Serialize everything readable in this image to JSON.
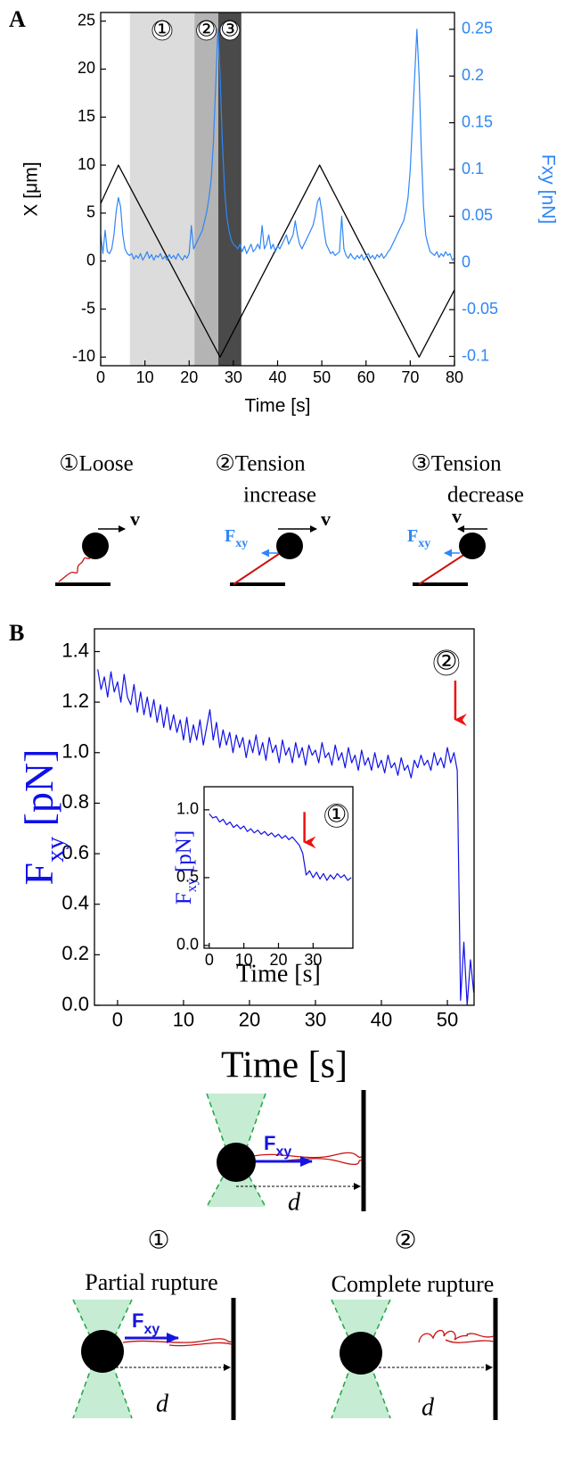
{
  "panel_labels": [
    "A",
    "B"
  ],
  "chart_data": [
    {
      "type": "line",
      "xlabel": "Time [s]",
      "ylabel": "X [μm]",
      "y2label": "Fxy [nN]",
      "xlim": [
        0,
        80
      ],
      "xticks": [
        0,
        10,
        20,
        30,
        40,
        50,
        60,
        70,
        80
      ],
      "ylim": [
        -10.9,
        25.9
      ],
      "yticks": [
        -10,
        -5,
        0,
        5,
        10,
        15,
        20,
        25
      ],
      "y2lim": [
        -0.11,
        0.268
      ],
      "y2ticks": [
        -0.1,
        -0.05,
        0,
        0.05,
        0.1,
        0.15,
        0.2,
        0.25
      ],
      "regions": [
        {
          "x0": 6.6,
          "x1": 21.2,
          "label": "①",
          "color": "#dcdcdc"
        },
        {
          "x0": 21.2,
          "x1": 26.6,
          "label": "②",
          "color": "#b4b4b4"
        },
        {
          "x0": 26.6,
          "x1": 31.8,
          "label": "③",
          "color": "#4a4a4a"
        }
      ],
      "series": [
        {
          "color": "#000000",
          "x": [
            0,
            4,
            27,
            49.5,
            72,
            80
          ],
          "values": [
            6,
            10,
            -10,
            10,
            -10,
            -3
          ]
        },
        {
          "color": "#2f86f6",
          "axis": "y2",
          "x": [
            0,
            0.5,
            1,
            1.5,
            2,
            2.5,
            3,
            3.5,
            4,
            4.5,
            5,
            5.5,
            6,
            6.5,
            7,
            7.5,
            8,
            8.5,
            9,
            9.5,
            10,
            10.5,
            11,
            11.5,
            12,
            12.5,
            13,
            13.5,
            14,
            14.5,
            15,
            15.5,
            16,
            16.5,
            17,
            17.5,
            18,
            18.5,
            19,
            19.5,
            20,
            20.5,
            21,
            21.5,
            22,
            22.5,
            23,
            23.5,
            24,
            24.5,
            25,
            25.5,
            26,
            26.5,
            27,
            27.5,
            28,
            28.5,
            29,
            29.5,
            30,
            30.5,
            31,
            31.5,
            32,
            32.5,
            33,
            33.5,
            34,
            34.5,
            35,
            35.5,
            36,
            36.5,
            37,
            37.5,
            38,
            38.5,
            39,
            39.5,
            40,
            40.5,
            41,
            41.5,
            42,
            42.5,
            43,
            43.5,
            44,
            44.5,
            45,
            45.5,
            46,
            46.5,
            47,
            47.5,
            48,
            48.5,
            49,
            49.5,
            50,
            50.5,
            51,
            51.5,
            52,
            52.5,
            53,
            53.5,
            54,
            54.5,
            55,
            55.5,
            56,
            56.5,
            57,
            57.5,
            58,
            58.5,
            59,
            59.5,
            60,
            60.5,
            61,
            61.5,
            62,
            62.5,
            63,
            63.5,
            64,
            64.5,
            65,
            65.5,
            66,
            66.5,
            67,
            67.5,
            68,
            68.5,
            69,
            69.5,
            70,
            70.5,
            71,
            71.5,
            72,
            72.5,
            73,
            73.5,
            74,
            74.5,
            75,
            75.5,
            76,
            76.5,
            77,
            77.5,
            78,
            78.5,
            79,
            79.5,
            80
          ],
          "values": [
            0.03,
            0.01,
            0.035,
            0.012,
            0.01,
            0.015,
            0.03,
            0.055,
            0.07,
            0.06,
            0.03,
            0.015,
            0.01,
            0.008,
            0.01,
            0.004,
            0.008,
            0.005,
            0.01,
            0.003,
            0.007,
            0.012,
            0.005,
            0.009,
            0.003,
            0.008,
            0.006,
            0.01,
            0.004,
            0.007,
            0.003,
            0.009,
            0.005,
            0.008,
            0.004,
            0.01,
            0.006,
            0.003,
            0.008,
            0.005,
            0.01,
            0.04,
            0.015,
            0.02,
            0.025,
            0.03,
            0.035,
            0.045,
            0.055,
            0.07,
            0.09,
            0.13,
            0.19,
            0.25,
            0.2,
            0.13,
            0.08,
            0.05,
            0.035,
            0.025,
            0.02,
            0.018,
            0.015,
            0.02,
            0.012,
            0.018,
            0.01,
            0.015,
            0.02,
            0.012,
            0.015,
            0.02,
            0.015,
            0.04,
            0.015,
            0.02,
            0.03,
            0.015,
            0.02,
            0.012,
            0.018,
            0.015,
            0.02,
            0.025,
            0.03,
            0.02,
            0.025,
            0.03,
            0.045,
            0.03,
            0.02,
            0.015,
            0.02,
            0.025,
            0.03,
            0.035,
            0.04,
            0.05,
            0.065,
            0.07,
            0.055,
            0.035,
            0.02,
            0.015,
            0.01,
            0.012,
            0.008,
            0.01,
            0.012,
            0.05,
            0.015,
            0.008,
            0.005,
            0.01,
            0.006,
            0.004,
            0.008,
            0.005,
            0.009,
            0.003,
            0.007,
            0.01,
            0.005,
            0.008,
            0.004,
            0.009,
            0.006,
            0.01,
            0.005,
            0.008,
            0.012,
            0.015,
            0.02,
            0.025,
            0.03,
            0.035,
            0.04,
            0.045,
            0.055,
            0.07,
            0.1,
            0.15,
            0.2,
            0.25,
            0.2,
            0.12,
            0.06,
            0.03,
            0.02,
            0.012,
            0.01,
            0.008,
            0.012,
            0.006,
            0.01,
            0.007,
            0.012,
            0.008,
            0.01,
            0.003,
            0.005
          ]
        }
      ]
    },
    {
      "type": "line",
      "xlabel": "Time [s]",
      "ylabel": {
        "text": "F",
        "sub": "xy",
        "unit": "[pN]"
      },
      "xlim": [
        -3.5,
        54.05
      ],
      "xticks": [
        0,
        10,
        20,
        30,
        40,
        50
      ],
      "ylim": [
        0,
        1.49
      ],
      "yticks": [
        {
          "value": 0,
          "label": "0.0"
        },
        0.2,
        0.4,
        0.6,
        0.8,
        {
          "value": 1,
          "label": "1.0"
        },
        1.2,
        1.4
      ],
      "annotations": [
        {
          "x": 51.2,
          "y": 1.13,
          "label": "②",
          "color": "#ee1111"
        }
      ],
      "series": [
        {
          "color": "#1010e8",
          "x": [
            -3,
            -2.5,
            -2,
            -1.5,
            -1,
            -0.5,
            0,
            0.5,
            1,
            1.5,
            2,
            2.5,
            3,
            3.5,
            4,
            4.5,
            5,
            5.5,
            6,
            6.5,
            7,
            7.5,
            8,
            8.5,
            9,
            9.5,
            10,
            10.5,
            11,
            11.5,
            12,
            12.5,
            13,
            13.5,
            14,
            14.5,
            15,
            15.5,
            16,
            16.5,
            17,
            17.5,
            18,
            18.5,
            19,
            19.5,
            20,
            20.5,
            21,
            21.5,
            22,
            22.5,
            23,
            23.5,
            24,
            24.5,
            25,
            25.5,
            26,
            26.5,
            27,
            27.5,
            28,
            28.5,
            29,
            29.5,
            30,
            30.5,
            31,
            31.5,
            32,
            32.5,
            33,
            33.5,
            34,
            34.5,
            35,
            35.5,
            36,
            36.5,
            37,
            37.5,
            38,
            38.5,
            39,
            39.5,
            40,
            40.5,
            41,
            41.5,
            42,
            42.5,
            43,
            43.5,
            44,
            44.5,
            45,
            45.5,
            46,
            46.5,
            47,
            47.5,
            48,
            48.5,
            49,
            49.5,
            50,
            50.5,
            51,
            51.5,
            52,
            52.5,
            53,
            53.5,
            54
          ],
          "values": [
            1.33,
            1.25,
            1.3,
            1.22,
            1.32,
            1.24,
            1.28,
            1.2,
            1.31,
            1.22,
            1.19,
            1.27,
            1.16,
            1.24,
            1.15,
            1.22,
            1.14,
            1.21,
            1.12,
            1.19,
            1.1,
            1.18,
            1.09,
            1.15,
            1.08,
            1.13,
            1.05,
            1.14,
            1.04,
            1.11,
            1.05,
            1.13,
            1.03,
            1.1,
            1.17,
            1.05,
            1.12,
            1.02,
            1.09,
            1.03,
            1.08,
            1.0,
            1.07,
            1.02,
            1.06,
            0.98,
            1.05,
            1.0,
            1.07,
            0.99,
            1.04,
            0.97,
            1.06,
            1.0,
            1.03,
            0.96,
            1.05,
            0.99,
            1.02,
            0.96,
            1.04,
            0.98,
            1.02,
            0.95,
            1.03,
            0.99,
            1.01,
            0.96,
            1.04,
            0.98,
            1.0,
            0.95,
            1.03,
            0.97,
            1.0,
            0.94,
            1.02,
            0.96,
            0.99,
            0.93,
            1.01,
            0.95,
            0.98,
            0.93,
            1.0,
            0.94,
            0.97,
            0.92,
            0.99,
            0.94,
            0.96,
            0.91,
            0.98,
            0.93,
            0.95,
            0.9,
            0.97,
            0.94,
            0.99,
            0.95,
            0.97,
            0.93,
            1.0,
            0.95,
            0.98,
            0.94,
            1.02,
            0.96,
            1.0,
            0.93,
            0.02,
            0.25,
            0,
            0.18,
            0.05
          ]
        }
      ]
    },
    {
      "type": "line",
      "xlabel": "Time [s]",
      "ylabel": {
        "text": "F",
        "sub": "xy",
        "unit": "[pN]"
      },
      "xlim": [
        -1.5,
        41.5
      ],
      "xticks": [
        0,
        10,
        20,
        30
      ],
      "ylim": [
        -0.02,
        1.17
      ],
      "yticks": [
        {
          "value": 0,
          "label": "0.0"
        },
        0.5,
        {
          "value": 1,
          "label": "1.0"
        }
      ],
      "annotations": [
        {
          "x": 27.5,
          "y": 0.76,
          "label": "①",
          "color": "#ee1111"
        }
      ],
      "series": [
        {
          "color": "#1010e8",
          "x": [
            0,
            1,
            2,
            3,
            4,
            5,
            6,
            7,
            8,
            9,
            10,
            11,
            12,
            13,
            14,
            15,
            16,
            17,
            18,
            19,
            20,
            21,
            22,
            23,
            24,
            25,
            26,
            27,
            28,
            29,
            30,
            31,
            32,
            33,
            34,
            35,
            36,
            37,
            38,
            39,
            40,
            41
          ],
          "values": [
            0.97,
            0.94,
            0.95,
            0.91,
            0.93,
            0.89,
            0.91,
            0.87,
            0.89,
            0.86,
            0.88,
            0.84,
            0.86,
            0.83,
            0.85,
            0.82,
            0.84,
            0.81,
            0.83,
            0.8,
            0.82,
            0.79,
            0.81,
            0.78,
            0.8,
            0.77,
            0.74,
            0.68,
            0.52,
            0.55,
            0.5,
            0.54,
            0.49,
            0.53,
            0.48,
            0.52,
            0.49,
            0.53,
            0.5,
            0.52,
            0.48,
            0.5
          ]
        }
      ]
    }
  ],
  "states": [
    {
      "lines": [
        "①Loose"
      ],
      "velocity": "v"
    },
    {
      "lines": [
        "②Tension",
        "increase"
      ],
      "velocity": "v",
      "force": "F",
      "force_sub": "xy"
    },
    {
      "lines": [
        "③Tension",
        "decrease"
      ],
      "velocity": "v",
      "force": "F",
      "force_sub": "xy"
    }
  ],
  "rupture": {
    "scheme": {
      "force": "F",
      "force_sub": "xy",
      "distance": "d"
    },
    "cases": [
      {
        "number": "①",
        "title": "Partial rupture",
        "force": "F",
        "force_sub": "xy",
        "distance": "d"
      },
      {
        "number": "②",
        "title": "Complete rupture",
        "distance": "d"
      }
    ]
  }
}
